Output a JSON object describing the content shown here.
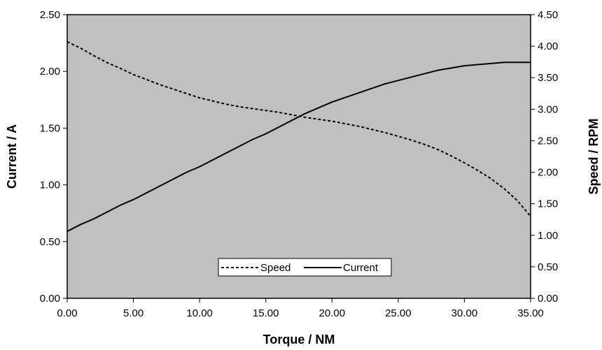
{
  "chart_data": {
    "type": "line",
    "title": "",
    "xlabel": "Torque / NM",
    "ylabel_left": "Current / A",
    "ylabel_right": "Speed / RPM",
    "xlim": [
      0,
      35
    ],
    "ylim_left": [
      0,
      2.5
    ],
    "ylim_right": [
      0,
      4.5
    ],
    "x_ticks": [
      "0.00",
      "5.00",
      "10.00",
      "15.00",
      "20.00",
      "25.00",
      "30.00",
      "35.00"
    ],
    "y_left_ticks": [
      "0.00",
      "0.50",
      "1.00",
      "1.50",
      "2.00",
      "2.50"
    ],
    "y_right_ticks": [
      "0.00",
      "0.50",
      "1.00",
      "1.50",
      "2.00",
      "2.50",
      "3.00",
      "3.50",
      "4.00",
      "4.50"
    ],
    "grid": false,
    "legend_position": "bottom-center",
    "plot_background": "#c0c0c0",
    "series": [
      {
        "name": "Speed",
        "axis": "right",
        "style": "dashed",
        "color": "#000000",
        "x": [
          0,
          1,
          2,
          3,
          4,
          5,
          6,
          7,
          8,
          9,
          10,
          11,
          12,
          13,
          14,
          15,
          16,
          17,
          18,
          19,
          20,
          21,
          22,
          23,
          24,
          25,
          26,
          27,
          28,
          29,
          30,
          31,
          32,
          33,
          34,
          35
        ],
        "values": [
          4.07,
          3.97,
          3.85,
          3.74,
          3.65,
          3.55,
          3.47,
          3.39,
          3.32,
          3.25,
          3.18,
          3.13,
          3.08,
          3.04,
          3.01,
          2.98,
          2.95,
          2.91,
          2.87,
          2.84,
          2.81,
          2.77,
          2.73,
          2.68,
          2.63,
          2.57,
          2.51,
          2.44,
          2.36,
          2.26,
          2.15,
          2.03,
          1.9,
          1.74,
          1.55,
          1.3
        ]
      },
      {
        "name": "Current",
        "axis": "left",
        "style": "solid",
        "color": "#000000",
        "x": [
          0,
          1,
          2,
          3,
          4,
          5,
          6,
          7,
          8,
          9,
          10,
          11,
          12,
          13,
          14,
          15,
          16,
          17,
          18,
          19,
          20,
          21,
          22,
          23,
          24,
          25,
          26,
          27,
          28,
          29,
          30,
          31,
          32,
          33,
          34,
          35
        ],
        "values": [
          0.59,
          0.65,
          0.7,
          0.76,
          0.82,
          0.87,
          0.93,
          0.99,
          1.05,
          1.11,
          1.16,
          1.22,
          1.28,
          1.34,
          1.4,
          1.45,
          1.51,
          1.57,
          1.63,
          1.68,
          1.73,
          1.77,
          1.81,
          1.85,
          1.89,
          1.92,
          1.95,
          1.98,
          2.01,
          2.03,
          2.05,
          2.06,
          2.07,
          2.08,
          2.08,
          2.08
        ]
      }
    ]
  }
}
